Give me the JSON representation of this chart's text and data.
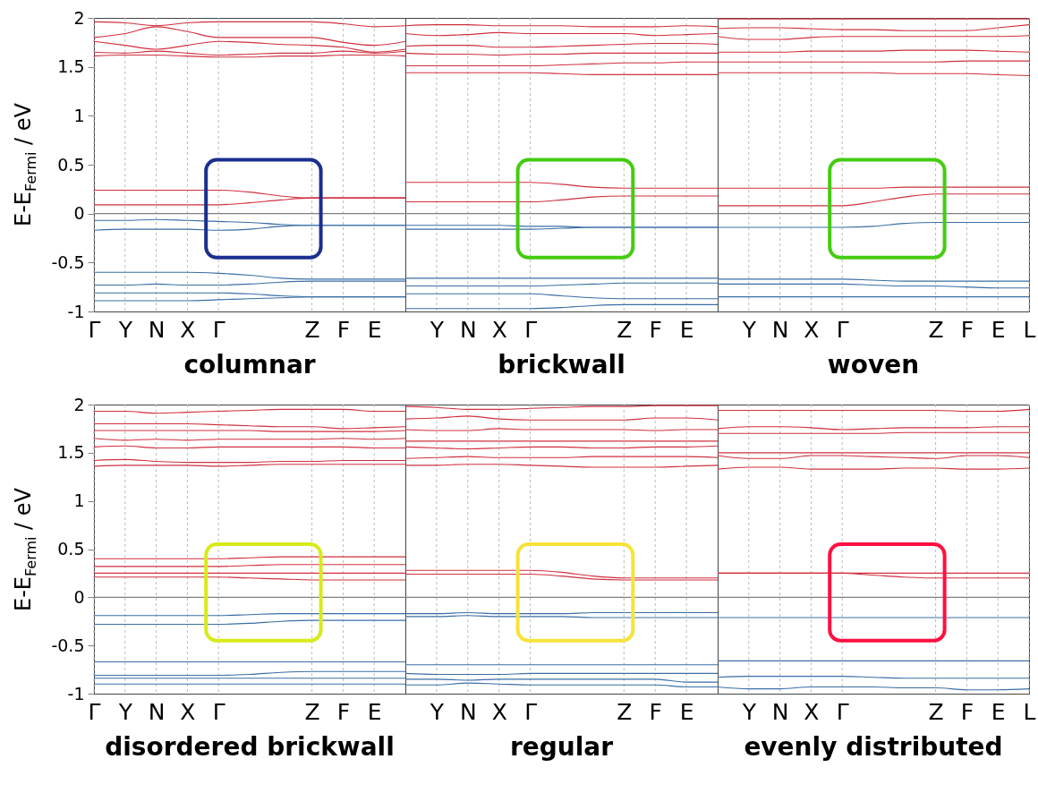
{
  "chart_data": [
    {
      "type": "line",
      "title": "columnar",
      "ylabel": "E-E$_{Fermi}$ / eV",
      "categories": [
        "Γ",
        "Y",
        "N",
        "X",
        "Γ",
        null,
        null,
        "Z",
        "F",
        "E",
        null
      ],
      "ylim": [
        -1,
        2
      ],
      "yticks": [
        -1,
        -0.5,
        0,
        0.5,
        1,
        1.5,
        2
      ],
      "grid": "x",
      "ref_lines": [
        {
          "axis": "y",
          "value": 0,
          "color": "#808080"
        }
      ],
      "series": [
        {
          "color": "#d0303e",
          "values": [
            1.96,
            1.95,
            1.92,
            1.95,
            1.96,
            1.96,
            1.96,
            1.96,
            1.94,
            1.91,
            1.92
          ]
        },
        {
          "color": "#d0303e",
          "values": [
            1.8,
            1.84,
            1.91,
            1.86,
            1.8,
            1.8,
            1.8,
            1.8,
            1.75,
            1.72,
            1.76
          ]
        },
        {
          "color": "#d0303e",
          "values": [
            1.76,
            1.72,
            1.68,
            1.72,
            1.76,
            1.75,
            1.73,
            1.72,
            1.7,
            1.65,
            1.68
          ]
        },
        {
          "color": "#d0303e",
          "values": [
            1.65,
            1.64,
            1.66,
            1.64,
            1.62,
            1.63,
            1.64,
            1.64,
            1.66,
            1.64,
            1.66
          ]
        },
        {
          "color": "#d0303e",
          "values": [
            1.61,
            1.62,
            1.62,
            1.61,
            1.6,
            1.6,
            1.61,
            1.61,
            1.62,
            1.62,
            1.61
          ]
        },
        {
          "color": "#d0303e",
          "values": [
            0.24,
            0.24,
            0.24,
            0.24,
            0.24,
            0.22,
            0.18,
            0.16,
            0.16,
            0.16,
            0.16
          ]
        },
        {
          "color": "#d0303e",
          "values": [
            0.09,
            0.09,
            0.09,
            0.09,
            0.09,
            0.11,
            0.14,
            0.16,
            0.16,
            0.16,
            0.16
          ]
        },
        {
          "color": "#3a6ea5",
          "values": [
            -0.07,
            -0.07,
            -0.06,
            -0.07,
            -0.08,
            -0.09,
            -0.11,
            -0.12,
            -0.12,
            -0.12,
            -0.12
          ]
        },
        {
          "color": "#3a6ea5",
          "values": [
            -0.17,
            -0.16,
            -0.16,
            -0.16,
            -0.17,
            -0.16,
            -0.13,
            -0.12,
            -0.12,
            -0.12,
            -0.12
          ]
        },
        {
          "color": "#3a6ea5",
          "values": [
            -0.6,
            -0.6,
            -0.6,
            -0.6,
            -0.61,
            -0.63,
            -0.66,
            -0.67,
            -0.67,
            -0.67,
            -0.67
          ]
        },
        {
          "color": "#3a6ea5",
          "values": [
            -0.73,
            -0.73,
            -0.72,
            -0.73,
            -0.73,
            -0.72,
            -0.7,
            -0.69,
            -0.69,
            -0.69,
            -0.69
          ]
        },
        {
          "color": "#3a6ea5",
          "values": [
            -0.81,
            -0.81,
            -0.81,
            -0.81,
            -0.81,
            -0.82,
            -0.84,
            -0.85,
            -0.85,
            -0.85,
            -0.85
          ]
        },
        {
          "color": "#3a6ea5",
          "values": [
            -0.89,
            -0.89,
            -0.89,
            -0.89,
            -0.88,
            -0.87,
            -0.86,
            -0.85,
            -0.85,
            -0.85,
            -0.85
          ]
        }
      ]
    },
    {
      "type": "line",
      "title": "brickwall",
      "categories": [
        null,
        "Y",
        "N",
        "X",
        "Γ",
        null,
        null,
        "Z",
        "F",
        "E",
        null
      ],
      "ylim": [
        -1,
        2
      ],
      "yticks": [
        -1,
        -0.5,
        0,
        0.5,
        1,
        1.5,
        2
      ],
      "tick_labels": "x",
      "grid": "x",
      "ref_lines": [
        {
          "axis": "y",
          "value": 0,
          "color": "#808080"
        }
      ],
      "series": [
        {
          "color": "#d0303e",
          "values": [
            1.92,
            1.93,
            1.93,
            1.92,
            1.92,
            1.92,
            1.91,
            1.91,
            1.91,
            1.92,
            1.91
          ]
        },
        {
          "color": "#d0303e",
          "values": [
            1.84,
            1.82,
            1.83,
            1.85,
            1.84,
            1.84,
            1.84,
            1.84,
            1.82,
            1.83,
            1.84
          ]
        },
        {
          "color": "#d0303e",
          "values": [
            1.71,
            1.72,
            1.72,
            1.7,
            1.7,
            1.71,
            1.72,
            1.73,
            1.74,
            1.74,
            1.73
          ]
        },
        {
          "color": "#d0303e",
          "values": [
            1.64,
            1.63,
            1.63,
            1.62,
            1.63,
            1.63,
            1.64,
            1.64,
            1.64,
            1.64,
            1.64
          ]
        },
        {
          "color": "#d0303e",
          "values": [
            1.51,
            1.51,
            1.51,
            1.51,
            1.51,
            1.52,
            1.53,
            1.54,
            1.54,
            1.55,
            1.55
          ]
        },
        {
          "color": "#d0303e",
          "values": [
            1.44,
            1.44,
            1.44,
            1.44,
            1.44,
            1.43,
            1.42,
            1.42,
            1.42,
            1.42,
            1.42
          ]
        },
        {
          "color": "#d0303e",
          "values": [
            0.32,
            0.32,
            0.32,
            0.32,
            0.32,
            0.3,
            0.27,
            0.26,
            0.26,
            0.26,
            0.26
          ]
        },
        {
          "color": "#d0303e",
          "values": [
            0.12,
            0.12,
            0.12,
            0.12,
            0.12,
            0.14,
            0.17,
            0.18,
            0.18,
            0.18,
            0.18
          ]
        },
        {
          "color": "#3a6ea5",
          "values": [
            -0.12,
            -0.12,
            -0.12,
            -0.12,
            -0.13,
            -0.13,
            -0.14,
            -0.14,
            -0.14,
            -0.14,
            -0.14
          ]
        },
        {
          "color": "#3a6ea5",
          "values": [
            -0.16,
            -0.16,
            -0.16,
            -0.16,
            -0.16,
            -0.15,
            -0.14,
            -0.14,
            -0.14,
            -0.14,
            -0.14
          ]
        },
        {
          "color": "#3a6ea5",
          "values": [
            -0.66,
            -0.66,
            -0.66,
            -0.66,
            -0.66,
            -0.66,
            -0.66,
            -0.66,
            -0.66,
            -0.66,
            -0.66
          ]
        },
        {
          "color": "#3a6ea5",
          "values": [
            -0.74,
            -0.74,
            -0.74,
            -0.74,
            -0.74,
            -0.73,
            -0.72,
            -0.71,
            -0.71,
            -0.71,
            -0.71
          ]
        },
        {
          "color": "#3a6ea5",
          "values": [
            -0.82,
            -0.82,
            -0.82,
            -0.82,
            -0.82,
            -0.84,
            -0.86,
            -0.87,
            -0.87,
            -0.87,
            -0.87
          ]
        },
        {
          "color": "#3a6ea5",
          "values": [
            -0.97,
            -0.97,
            -0.97,
            -0.97,
            -0.97,
            -0.96,
            -0.94,
            -0.93,
            -0.93,
            -0.93,
            -0.93
          ]
        }
      ]
    },
    {
      "type": "line",
      "title": "woven",
      "categories": [
        null,
        "Y",
        "N",
        "X",
        "Γ",
        null,
        null,
        "Z",
        "F",
        "E",
        "L"
      ],
      "ylim": [
        -1,
        2
      ],
      "yticks": [
        -1,
        -0.5,
        0,
        0.5,
        1,
        1.5,
        2
      ],
      "tick_labels": "x",
      "grid": "x",
      "ref_lines": [
        {
          "axis": "y",
          "value": 0,
          "color": "#808080"
        }
      ],
      "series": [
        {
          "color": "#d0303e",
          "values": [
            1.99,
            1.99,
            1.99,
            1.99,
            1.99,
            1.99,
            1.99,
            1.99,
            1.99,
            1.99,
            1.99
          ]
        },
        {
          "color": "#d0303e",
          "values": [
            1.89,
            1.9,
            1.9,
            1.89,
            1.88,
            1.88,
            1.87,
            1.87,
            1.87,
            1.9,
            1.93
          ]
        },
        {
          "color": "#d0303e",
          "values": [
            1.81,
            1.78,
            1.78,
            1.8,
            1.81,
            1.81,
            1.81,
            1.81,
            1.81,
            1.81,
            1.82
          ]
        },
        {
          "color": "#d0303e",
          "values": [
            1.65,
            1.65,
            1.65,
            1.66,
            1.66,
            1.66,
            1.67,
            1.67,
            1.67,
            1.66,
            1.65
          ]
        },
        {
          "color": "#d0303e",
          "values": [
            1.55,
            1.55,
            1.55,
            1.55,
            1.55,
            1.55,
            1.55,
            1.55,
            1.56,
            1.56,
            1.56
          ]
        },
        {
          "color": "#d0303e",
          "values": [
            1.44,
            1.44,
            1.44,
            1.44,
            1.44,
            1.44,
            1.43,
            1.43,
            1.43,
            1.42,
            1.41
          ]
        },
        {
          "color": "#d0303e",
          "values": [
            0.26,
            0.26,
            0.26,
            0.26,
            0.26,
            0.26,
            0.27,
            0.27,
            0.27,
            0.27,
            0.27
          ]
        },
        {
          "color": "#d0303e",
          "values": [
            0.08,
            0.08,
            0.08,
            0.08,
            0.08,
            0.12,
            0.17,
            0.2,
            0.2,
            0.2,
            0.2
          ]
        },
        {
          "color": "#3a6ea5",
          "values": [
            -0.14,
            -0.14,
            -0.14,
            -0.14,
            -0.14,
            -0.13,
            -0.1,
            -0.09,
            -0.09,
            -0.09,
            -0.09
          ]
        },
        {
          "color": "#3a6ea5",
          "values": [
            -0.67,
            -0.67,
            -0.67,
            -0.67,
            -0.67,
            -0.68,
            -0.69,
            -0.69,
            -0.69,
            -0.69,
            -0.69
          ]
        },
        {
          "color": "#3a6ea5",
          "values": [
            -0.72,
            -0.72,
            -0.72,
            -0.72,
            -0.72,
            -0.73,
            -0.74,
            -0.74,
            -0.75,
            -0.76,
            -0.76
          ]
        },
        {
          "color": "#3a6ea5",
          "values": [
            -0.85,
            -0.85,
            -0.85,
            -0.85,
            -0.85,
            -0.85,
            -0.85,
            -0.85,
            -0.85,
            -0.85,
            -0.85
          ]
        }
      ]
    },
    {
      "type": "line",
      "title": "disordered brickwall",
      "ylabel": "E-E$_{Fermi}$ / eV",
      "categories": [
        "Γ",
        "Y",
        "N",
        "X",
        "Γ",
        null,
        null,
        "Z",
        "F",
        "E",
        null
      ],
      "ylim": [
        -1,
        2
      ],
      "yticks": [
        -1,
        -0.5,
        0,
        0.5,
        1,
        1.5,
        2
      ],
      "grid": "x",
      "ref_lines": [
        {
          "axis": "y",
          "value": 0,
          "color": "#808080"
        }
      ],
      "series": [
        {
          "color": "#d0303e",
          "values": [
            1.93,
            1.93,
            1.91,
            1.92,
            1.93,
            1.94,
            1.95,
            1.95,
            1.95,
            1.93,
            1.93
          ]
        },
        {
          "color": "#d0303e",
          "values": [
            1.8,
            1.8,
            1.8,
            1.8,
            1.79,
            1.78,
            1.77,
            1.77,
            1.75,
            1.76,
            1.77
          ]
        },
        {
          "color": "#d0303e",
          "values": [
            1.73,
            1.73,
            1.73,
            1.73,
            1.73,
            1.73,
            1.72,
            1.72,
            1.72,
            1.72,
            1.73
          ]
        },
        {
          "color": "#d0303e",
          "values": [
            1.65,
            1.63,
            1.64,
            1.63,
            1.64,
            1.64,
            1.64,
            1.64,
            1.65,
            1.64,
            1.65
          ]
        },
        {
          "color": "#d0303e",
          "values": [
            1.56,
            1.57,
            1.55,
            1.55,
            1.56,
            1.56,
            1.56,
            1.56,
            1.56,
            1.55,
            1.55
          ]
        },
        {
          "color": "#d0303e",
          "values": [
            1.42,
            1.43,
            1.41,
            1.4,
            1.4,
            1.4,
            1.41,
            1.41,
            1.42,
            1.42,
            1.42
          ]
        },
        {
          "color": "#d0303e",
          "values": [
            1.36,
            1.37,
            1.37,
            1.37,
            1.36,
            1.37,
            1.38,
            1.38,
            1.38,
            1.38,
            1.38
          ]
        },
        {
          "color": "#d0303e",
          "values": [
            0.4,
            0.4,
            0.4,
            0.4,
            0.4,
            0.41,
            0.42,
            0.42,
            0.42,
            0.42,
            0.42
          ]
        },
        {
          "color": "#d0303e",
          "values": [
            0.32,
            0.32,
            0.32,
            0.32,
            0.32,
            0.33,
            0.34,
            0.34,
            0.34,
            0.34,
            0.34
          ]
        },
        {
          "color": "#d0303e",
          "values": [
            0.25,
            0.25,
            0.25,
            0.25,
            0.25,
            0.25,
            0.25,
            0.25,
            0.25,
            0.25,
            0.25
          ]
        },
        {
          "color": "#d0303e",
          "values": [
            0.21,
            0.21,
            0.21,
            0.21,
            0.21,
            0.2,
            0.19,
            0.18,
            0.18,
            0.18,
            0.18
          ]
        },
        {
          "color": "#3a6ea5",
          "values": [
            -0.19,
            -0.19,
            -0.19,
            -0.19,
            -0.19,
            -0.18,
            -0.17,
            -0.17,
            -0.17,
            -0.17,
            -0.17
          ]
        },
        {
          "color": "#3a6ea5",
          "values": [
            -0.28,
            -0.28,
            -0.28,
            -0.28,
            -0.28,
            -0.27,
            -0.25,
            -0.24,
            -0.24,
            -0.24,
            -0.24
          ]
        },
        {
          "color": "#3a6ea5",
          "values": [
            -0.67,
            -0.67,
            -0.67,
            -0.67,
            -0.67,
            -0.67,
            -0.67,
            -0.67,
            -0.67,
            -0.67,
            -0.67
          ]
        },
        {
          "color": "#3a6ea5",
          "values": [
            -0.81,
            -0.81,
            -0.81,
            -0.81,
            -0.81,
            -0.8,
            -0.78,
            -0.77,
            -0.77,
            -0.77,
            -0.77
          ]
        },
        {
          "color": "#3a6ea5",
          "values": [
            -0.84,
            -0.84,
            -0.84,
            -0.84,
            -0.84,
            -0.84,
            -0.84,
            -0.84,
            -0.84,
            -0.84,
            -0.84
          ]
        },
        {
          "color": "#3a6ea5",
          "values": [
            -0.9,
            -0.9,
            -0.9,
            -0.9,
            -0.9,
            -0.9,
            -0.9,
            -0.9,
            -0.9,
            -0.9,
            -0.9
          ]
        }
      ]
    },
    {
      "type": "line",
      "title": "regular",
      "categories": [
        null,
        "Y",
        "N",
        "X",
        "Γ",
        null,
        null,
        "Z",
        "F",
        "E",
        null
      ],
      "ylim": [
        -1,
        2
      ],
      "yticks": [
        -1,
        -0.5,
        0,
        0.5,
        1,
        1.5,
        2
      ],
      "tick_labels": "x",
      "grid": "x",
      "ref_lines": [
        {
          "axis": "y",
          "value": 0,
          "color": "#808080"
        }
      ],
      "series": [
        {
          "color": "#d0303e",
          "values": [
            1.98,
            1.97,
            1.95,
            1.95,
            1.96,
            1.97,
            1.98,
            1.98,
            1.99,
            1.99,
            1.99
          ]
        },
        {
          "color": "#d0303e",
          "values": [
            1.85,
            1.86,
            1.88,
            1.85,
            1.84,
            1.84,
            1.84,
            1.84,
            1.86,
            1.86,
            1.84
          ]
        },
        {
          "color": "#d0303e",
          "values": [
            1.74,
            1.73,
            1.73,
            1.75,
            1.74,
            1.74,
            1.74,
            1.74,
            1.73,
            1.74,
            1.74
          ]
        },
        {
          "color": "#d0303e",
          "values": [
            1.62,
            1.62,
            1.62,
            1.62,
            1.62,
            1.62,
            1.62,
            1.62,
            1.62,
            1.62,
            1.62
          ]
        },
        {
          "color": "#d0303e",
          "values": [
            1.56,
            1.55,
            1.54,
            1.55,
            1.56,
            1.56,
            1.55,
            1.55,
            1.56,
            1.56,
            1.57
          ]
        },
        {
          "color": "#d0303e",
          "values": [
            1.44,
            1.45,
            1.46,
            1.45,
            1.45,
            1.45,
            1.46,
            1.46,
            1.46,
            1.46,
            1.45
          ]
        },
        {
          "color": "#d0303e",
          "values": [
            1.37,
            1.37,
            1.38,
            1.38,
            1.37,
            1.36,
            1.35,
            1.35,
            1.35,
            1.36,
            1.37
          ]
        },
        {
          "color": "#d0303e",
          "values": [
            0.28,
            0.28,
            0.28,
            0.28,
            0.28,
            0.26,
            0.22,
            0.2,
            0.2,
            0.2,
            0.2
          ]
        },
        {
          "color": "#d0303e",
          "values": [
            0.24,
            0.24,
            0.24,
            0.24,
            0.24,
            0.22,
            0.19,
            0.18,
            0.18,
            0.18,
            0.18
          ]
        },
        {
          "color": "#3a6ea5",
          "values": [
            -0.17,
            -0.17,
            -0.16,
            -0.17,
            -0.17,
            -0.17,
            -0.16,
            -0.16,
            -0.16,
            -0.16,
            -0.16
          ]
        },
        {
          "color": "#3a6ea5",
          "values": [
            -0.2,
            -0.2,
            -0.19,
            -0.2,
            -0.2,
            -0.2,
            -0.21,
            -0.21,
            -0.21,
            -0.21,
            -0.21
          ]
        },
        {
          "color": "#3a6ea5",
          "values": [
            -0.7,
            -0.7,
            -0.7,
            -0.7,
            -0.7,
            -0.7,
            -0.7,
            -0.7,
            -0.7,
            -0.7,
            -0.7
          ]
        },
        {
          "color": "#3a6ea5",
          "values": [
            -0.79,
            -0.8,
            -0.8,
            -0.8,
            -0.79,
            -0.79,
            -0.79,
            -0.79,
            -0.79,
            -0.79,
            -0.79
          ]
        },
        {
          "color": "#3a6ea5",
          "values": [
            -0.85,
            -0.85,
            -0.86,
            -0.85,
            -0.85,
            -0.85,
            -0.85,
            -0.85,
            -0.85,
            -0.88,
            -0.88
          ]
        },
        {
          "color": "#3a6ea5",
          "values": [
            -0.91,
            -0.91,
            -0.89,
            -0.9,
            -0.91,
            -0.91,
            -0.91,
            -0.91,
            -0.91,
            -0.93,
            -0.93
          ]
        }
      ]
    },
    {
      "type": "line",
      "title": "evenly distributed",
      "categories": [
        null,
        "Y",
        "N",
        "X",
        "Γ",
        null,
        null,
        "Z",
        "F",
        "E",
        "L"
      ],
      "ylim": [
        -1,
        2
      ],
      "yticks": [
        -1,
        -0.5,
        0,
        0.5,
        1,
        1.5,
        2
      ],
      "tick_labels": "x",
      "grid": "x",
      "ref_lines": [
        {
          "axis": "y",
          "value": 0,
          "color": "#808080"
        }
      ],
      "series": [
        {
          "color": "#d0303e",
          "values": [
            1.94,
            1.94,
            1.94,
            1.94,
            1.94,
            1.94,
            1.94,
            1.94,
            1.93,
            1.93,
            1.95
          ]
        },
        {
          "color": "#d0303e",
          "values": [
            1.75,
            1.77,
            1.77,
            1.76,
            1.74,
            1.75,
            1.76,
            1.76,
            1.76,
            1.77,
            1.77
          ]
        },
        {
          "color": "#d0303e",
          "values": [
            1.7,
            1.7,
            1.7,
            1.7,
            1.7,
            1.7,
            1.71,
            1.71,
            1.71,
            1.71,
            1.71
          ]
        },
        {
          "color": "#d0303e",
          "values": [
            1.5,
            1.5,
            1.5,
            1.5,
            1.5,
            1.5,
            1.5,
            1.5,
            1.5,
            1.5,
            1.5
          ]
        },
        {
          "color": "#d0303e",
          "values": [
            1.47,
            1.44,
            1.44,
            1.47,
            1.47,
            1.46,
            1.45,
            1.44,
            1.47,
            1.47,
            1.45
          ]
        },
        {
          "color": "#d0303e",
          "values": [
            1.33,
            1.35,
            1.35,
            1.33,
            1.33,
            1.33,
            1.34,
            1.34,
            1.33,
            1.33,
            1.34
          ]
        },
        {
          "color": "#d0303e",
          "values": [
            0.25,
            0.25,
            0.25,
            0.25,
            0.25,
            0.25,
            0.25,
            0.25,
            0.25,
            0.25,
            0.25
          ]
        },
        {
          "color": "#d0303e",
          "values": [
            0.25,
            0.25,
            0.25,
            0.25,
            0.25,
            0.23,
            0.21,
            0.2,
            0.2,
            0.2,
            0.2
          ]
        },
        {
          "color": "#3a6ea5",
          "values": [
            -0.21,
            -0.21,
            -0.21,
            -0.21,
            -0.21,
            -0.21,
            -0.21,
            -0.21,
            -0.21,
            -0.21,
            -0.21
          ]
        },
        {
          "color": "#3a6ea5",
          "values": [
            -0.66,
            -0.66,
            -0.66,
            -0.66,
            -0.66,
            -0.66,
            -0.66,
            -0.66,
            -0.66,
            -0.66,
            -0.66
          ]
        },
        {
          "color": "#3a6ea5",
          "values": [
            -0.83,
            -0.82,
            -0.82,
            -0.82,
            -0.82,
            -0.83,
            -0.84,
            -0.84,
            -0.84,
            -0.84,
            -0.84
          ]
        },
        {
          "color": "#3a6ea5",
          "values": [
            -0.93,
            -0.95,
            -0.95,
            -0.93,
            -0.93,
            -0.93,
            -0.94,
            -0.94,
            -0.96,
            -0.96,
            -0.95
          ]
        }
      ]
    }
  ]
}
